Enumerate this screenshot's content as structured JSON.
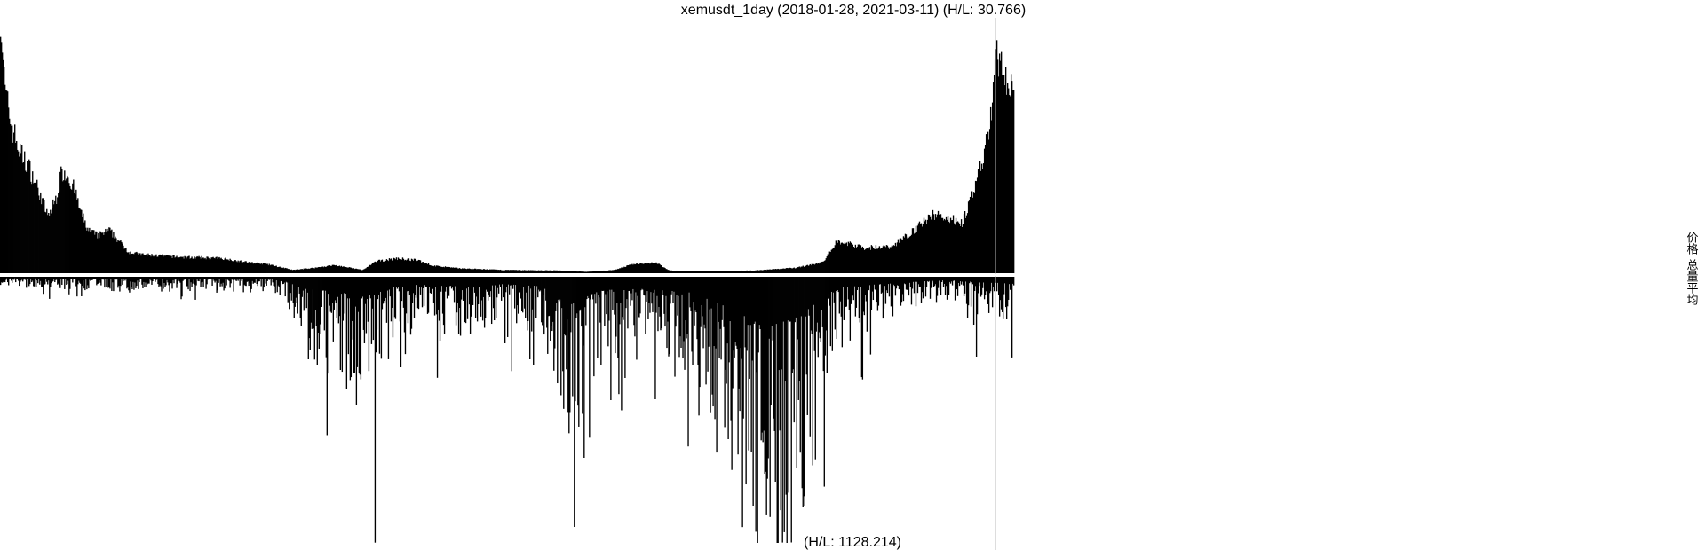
{
  "chart_data": {
    "type": "bar",
    "title": "xemusdt_1day (2018-01-28, 2021-03-11) (H/L: 30.766)",
    "volume_hl_label": "(H/L: 1128.214)",
    "date_range": [
      "2018-01-28",
      "2021-03-11"
    ],
    "legend": [
      "价格",
      "总量平均"
    ],
    "grid": false,
    "panels": [
      {
        "name": "价格",
        "position": "top",
        "profile": [
          [
            0,
            0.98
          ],
          [
            3,
            0.68
          ],
          [
            8,
            0.55
          ],
          [
            14,
            0.45
          ],
          [
            20,
            0.4
          ],
          [
            28,
            0.3
          ],
          [
            34,
            0.21
          ],
          [
            40,
            0.28
          ],
          [
            44,
            0.38
          ],
          [
            48,
            0.37
          ],
          [
            53,
            0.31
          ],
          [
            58,
            0.22
          ],
          [
            63,
            0.16
          ],
          [
            70,
            0.14
          ],
          [
            78,
            0.16
          ],
          [
            85,
            0.12
          ],
          [
            92,
            0.08
          ],
          [
            100,
            0.07
          ],
          [
            115,
            0.065
          ],
          [
            130,
            0.06
          ],
          [
            145,
            0.058
          ],
          [
            160,
            0.055
          ],
          [
            175,
            0.042
          ],
          [
            190,
            0.035
          ],
          [
            210,
            0.012
          ],
          [
            225,
            0.02
          ],
          [
            240,
            0.03
          ],
          [
            260,
            0.012
          ],
          [
            270,
            0.045
          ],
          [
            285,
            0.055
          ],
          [
            300,
            0.048
          ],
          [
            310,
            0.028
          ],
          [
            330,
            0.018
          ],
          [
            360,
            0.012
          ],
          [
            400,
            0.01
          ],
          [
            420,
            0.005
          ],
          [
            440,
            0.012
          ],
          [
            455,
            0.035
          ],
          [
            470,
            0.04
          ],
          [
            480,
            0.01
          ],
          [
            500,
            0.007
          ],
          [
            540,
            0.01
          ],
          [
            570,
            0.02
          ],
          [
            590,
            0.04
          ],
          [
            600,
            0.12
          ],
          [
            620,
            0.095
          ],
          [
            640,
            0.1
          ],
          [
            655,
            0.16
          ],
          [
            670,
            0.22
          ],
          [
            690,
            0.19
          ],
          [
            700,
            0.32
          ],
          [
            710,
            0.55
          ],
          [
            715,
            0.82
          ],
          [
            722,
            0.7
          ],
          [
            727,
            0.68
          ]
        ]
      },
      {
        "name": "总量平均",
        "position": "bottom",
        "profile": [
          [
            0,
            0.02
          ],
          [
            50,
            0.03
          ],
          [
            100,
            0.035
          ],
          [
            150,
            0.03
          ],
          [
            200,
            0.04
          ],
          [
            220,
            0.18
          ],
          [
            240,
            0.22
          ],
          [
            260,
            0.3
          ],
          [
            280,
            0.15
          ],
          [
            300,
            0.12
          ],
          [
            330,
            0.14
          ],
          [
            360,
            0.11
          ],
          [
            390,
            0.14
          ],
          [
            410,
            0.4
          ],
          [
            430,
            0.2
          ],
          [
            460,
            0.18
          ],
          [
            500,
            0.24
          ],
          [
            530,
            0.55
          ],
          [
            550,
            0.75
          ],
          [
            570,
            0.62
          ],
          [
            585,
            0.4
          ],
          [
            600,
            0.16
          ],
          [
            625,
            0.12
          ],
          [
            650,
            0.08
          ],
          [
            680,
            0.05
          ],
          [
            700,
            0.08
          ],
          [
            727,
            0.1
          ]
        ],
        "spikes": [
          [
            227,
            0.33
          ],
          [
            244,
            0.35
          ],
          [
            257,
            0.36
          ],
          [
            269,
            0.999
          ],
          [
            287,
            0.34
          ],
          [
            315,
            0.24
          ],
          [
            362,
            0.25
          ],
          [
            380,
            0.31
          ],
          [
            412,
            0.94
          ],
          [
            419,
            0.68
          ],
          [
            448,
            0.38
          ],
          [
            470,
            0.46
          ],
          [
            522,
            0.61
          ],
          [
            540,
            0.86
          ],
          [
            548,
            0.74
          ],
          [
            556,
            0.77
          ],
          [
            577,
            0.86
          ],
          [
            593,
            0.36
          ],
          [
            700,
            0.3
          ],
          [
            722,
            0.16
          ]
        ]
      }
    ]
  }
}
